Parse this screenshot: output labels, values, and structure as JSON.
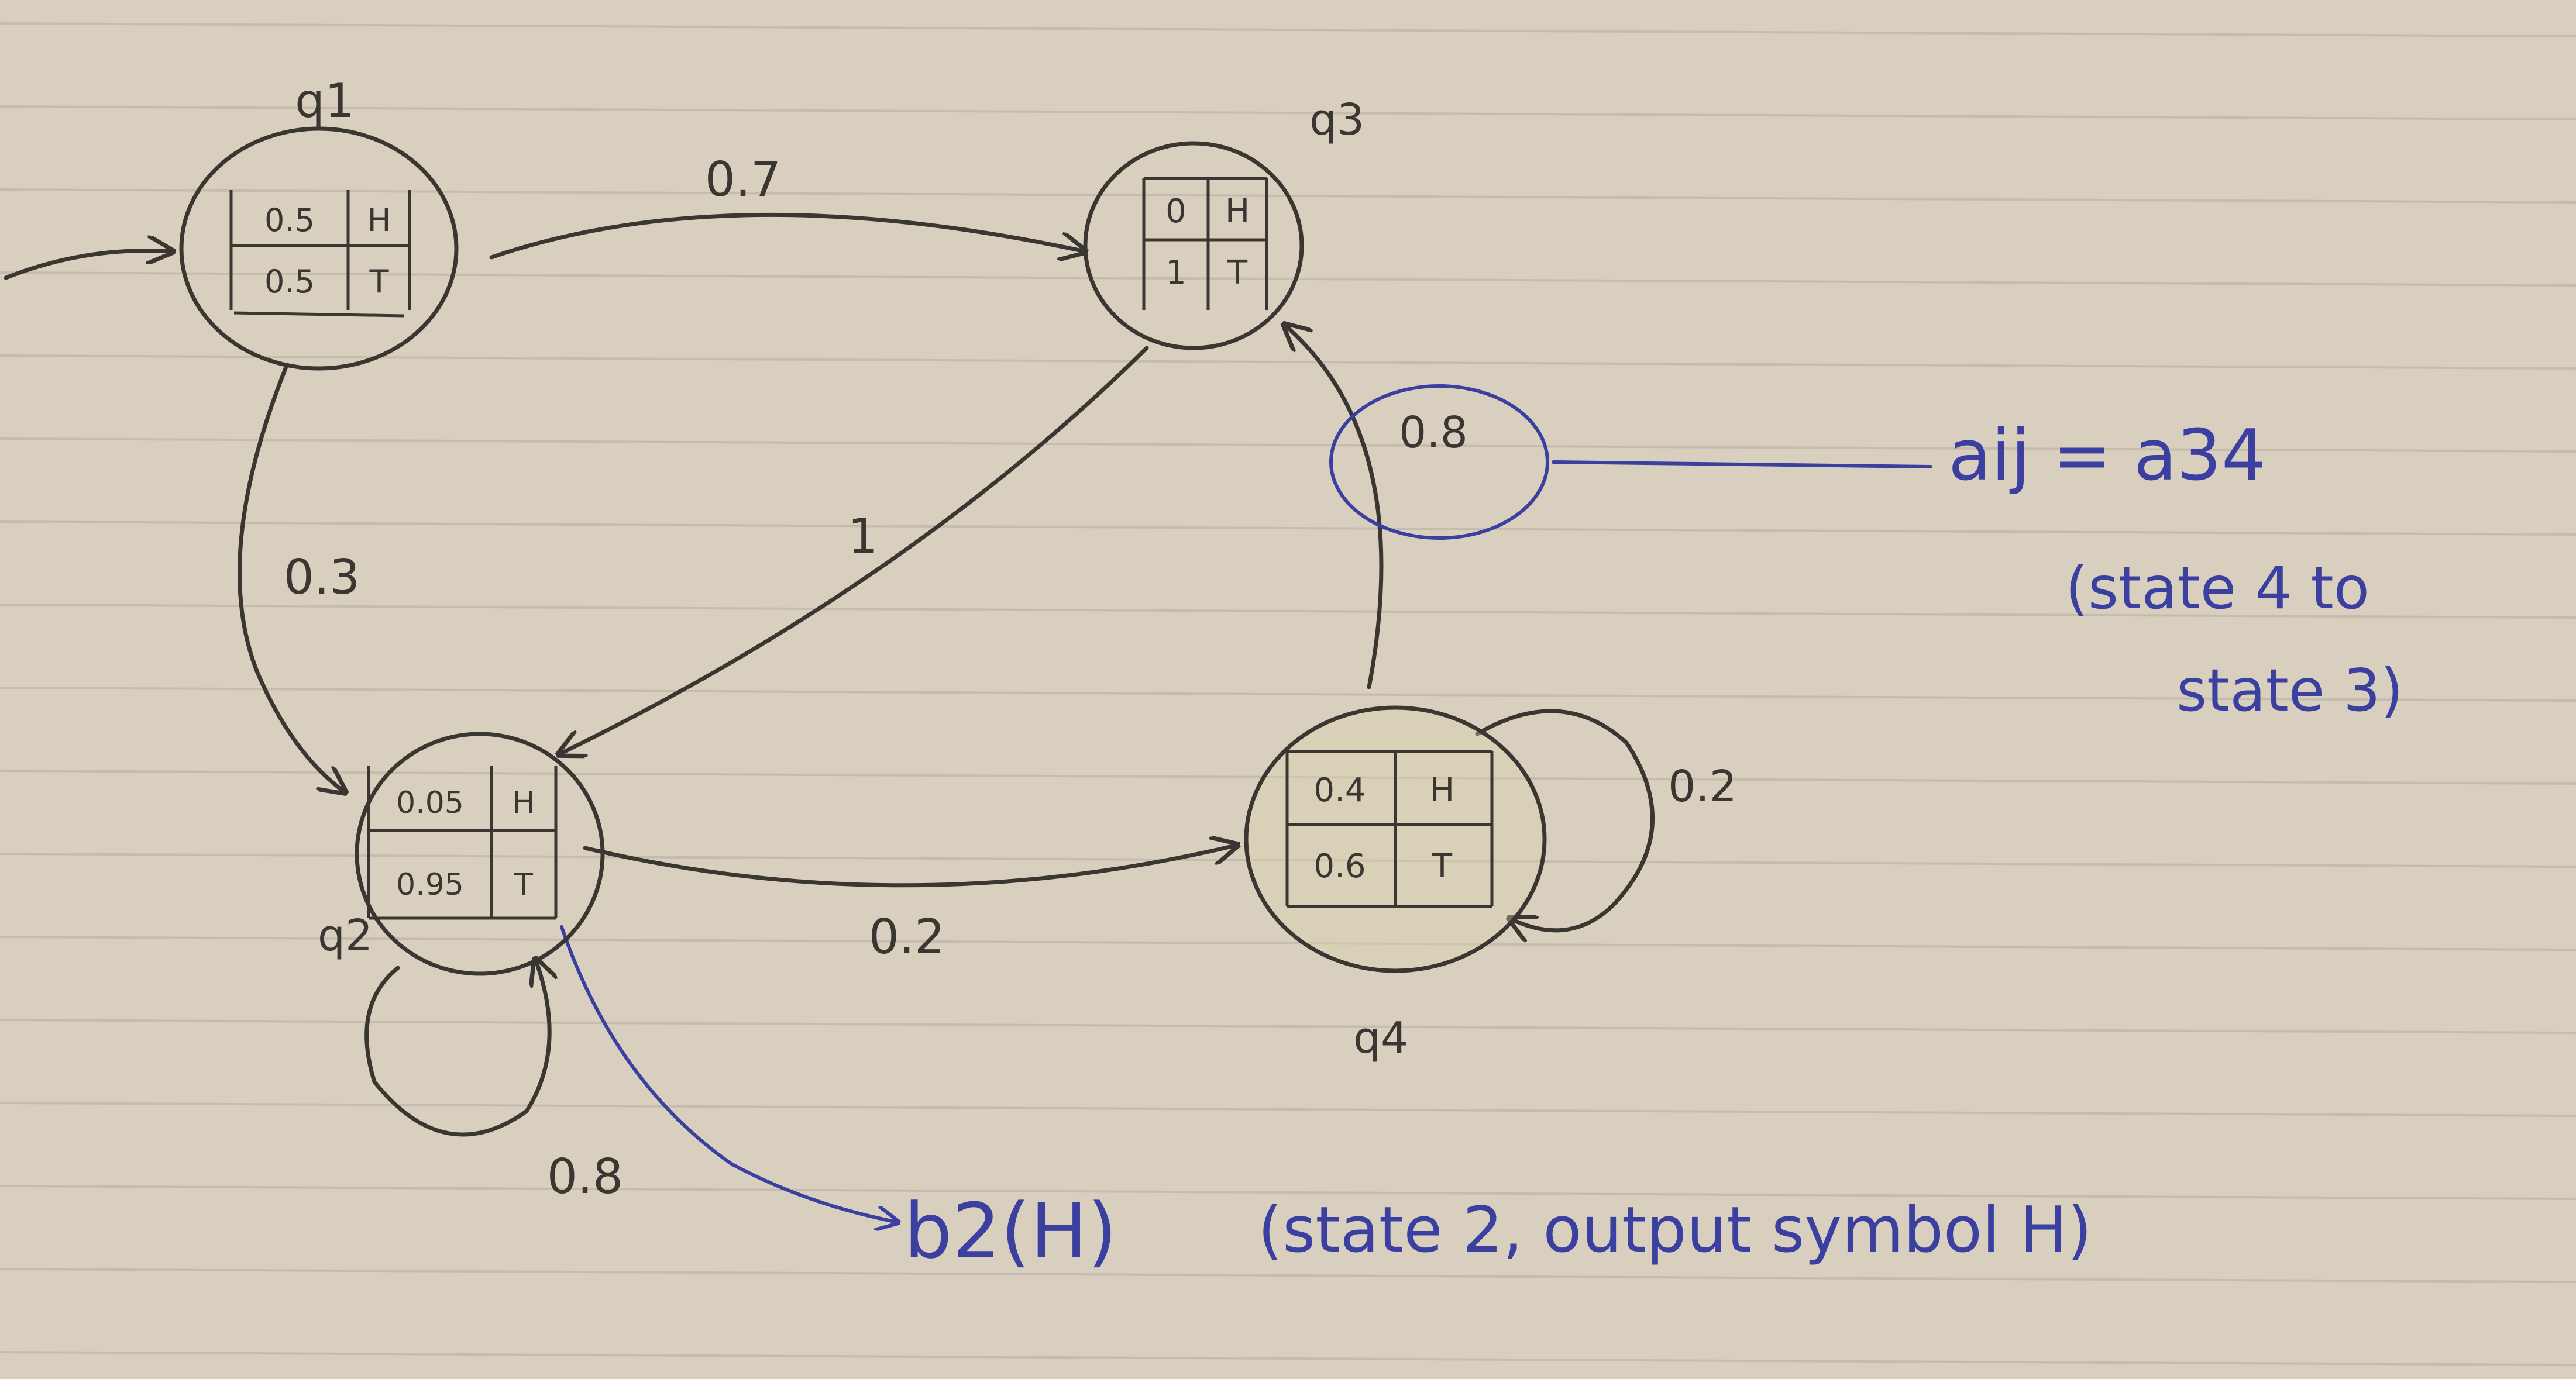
{
  "colors": {
    "paper": "#d8cfbf",
    "rule": "#c6bcae",
    "ink": "#3a3733",
    "blue": "#3a3fa0"
  },
  "states": {
    "q1": {
      "label": "q1",
      "table": [
        [
          "0.5",
          "H"
        ],
        [
          "0.5",
          "T"
        ]
      ]
    },
    "q2": {
      "label": "q2",
      "table": [
        [
          "0.05",
          "H"
        ],
        [
          "0.95",
          "T"
        ]
      ]
    },
    "q3": {
      "label": "q3",
      "table": [
        [
          "0",
          "H"
        ],
        [
          "1",
          "T"
        ]
      ]
    },
    "q4": {
      "label": "q4",
      "table": [
        [
          "0.4",
          "H"
        ],
        [
          "0.6",
          "T"
        ]
      ]
    }
  },
  "transitions": {
    "q1_q3": "0.7",
    "q1_q2": "0.3",
    "q3_q2": "1",
    "q4_q3": "0.8",
    "q4_q4": "0.2",
    "q2_q4": "0.2",
    "q2_q2": "0.8"
  },
  "annotations": {
    "aij": "aij = a34",
    "aij_note_line1": "(state 4 to",
    "aij_note_line2": "state 3)",
    "b2": "b2(H)",
    "b2_note": "(state 2, output symbol H)"
  }
}
